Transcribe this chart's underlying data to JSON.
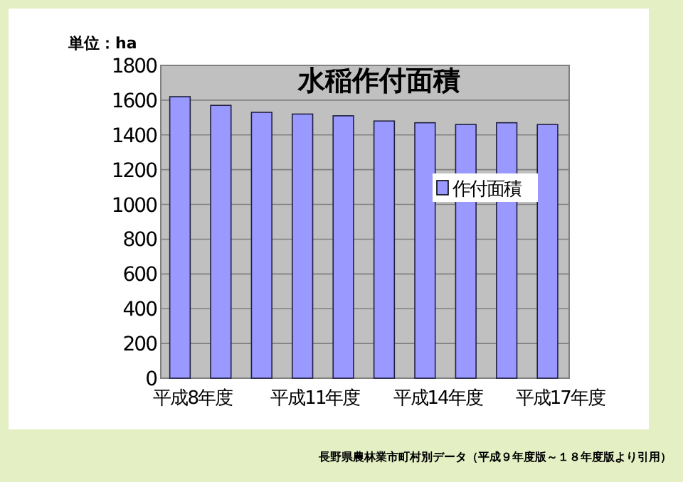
{
  "chart_data": {
    "type": "bar",
    "title": "水稲作付面積",
    "ylabel": "単位：ha",
    "categories": [
      "平成8年度",
      null,
      null,
      "平成11年度",
      null,
      null,
      "平成14年度",
      null,
      null,
      "平成17年度"
    ],
    "series": [
      {
        "name": "作付面積",
        "color": "#9999ff",
        "values": [
          1620,
          1570,
          1530,
          1520,
          1510,
          1480,
          1470,
          1460,
          1470,
          1460
        ]
      }
    ],
    "ylim": [
      0,
      1800
    ],
    "yticks": [
      0,
      200,
      400,
      600,
      800,
      1000,
      1200,
      1400,
      1600,
      1800
    ],
    "grid": "y",
    "legend": "right",
    "annotations": [
      "長野県農林業市町村別データ（平成９年度版～１８年度版より引用）"
    ]
  }
}
